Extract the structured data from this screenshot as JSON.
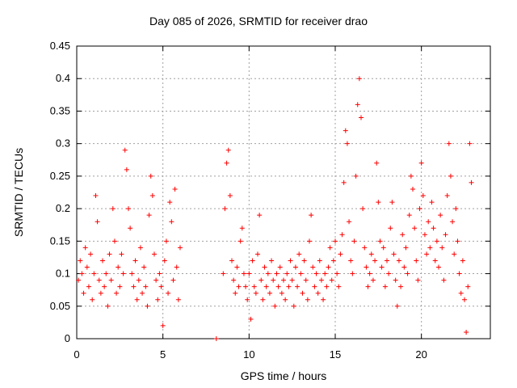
{
  "chart_data": {
    "type": "scatter",
    "title": "Day 085 of 2026, SRMTID for receiver drao",
    "xlabel": "GPS time / hours",
    "ylabel": "SRMTID / TECUs",
    "xlim": [
      0,
      24
    ],
    "ylim": [
      0,
      0.45
    ],
    "xticks": [
      0,
      5,
      10,
      15,
      20
    ],
    "yticks": [
      0,
      0.05,
      0.1,
      0.15,
      0.2,
      0.25,
      0.3,
      0.35,
      0.4,
      0.45
    ],
    "ytick_labels": [
      "0",
      "0.05",
      "0.1",
      "0.15",
      "0.2",
      "0.25",
      "0.3",
      "0.35",
      "0.4",
      "0.45"
    ],
    "grid": true,
    "series": [
      {
        "name": "SRMTID",
        "color": "#ff0000",
        "marker": "plus",
        "points": [
          [
            0.1,
            0.09
          ],
          [
            0.2,
            0.12
          ],
          [
            0.3,
            0.1
          ],
          [
            0.4,
            0.07
          ],
          [
            0.5,
            0.14
          ],
          [
            0.6,
            0.11
          ],
          [
            0.7,
            0.08
          ],
          [
            0.8,
            0.13
          ],
          [
            0.9,
            0.06
          ],
          [
            1.0,
            0.1
          ],
          [
            1.1,
            0.22
          ],
          [
            1.2,
            0.18
          ],
          [
            1.3,
            0.09
          ],
          [
            1.4,
            0.07
          ],
          [
            1.5,
            0.12
          ],
          [
            1.6,
            0.08
          ],
          [
            1.7,
            0.1
          ],
          [
            1.8,
            0.05
          ],
          [
            1.9,
            0.13
          ],
          [
            2.0,
            0.09
          ],
          [
            2.1,
            0.2
          ],
          [
            2.2,
            0.15
          ],
          [
            2.3,
            0.07
          ],
          [
            2.4,
            0.11
          ],
          [
            2.5,
            0.08
          ],
          [
            2.6,
            0.13
          ],
          [
            2.7,
            0.1
          ],
          [
            2.8,
            0.29
          ],
          [
            2.9,
            0.26
          ],
          [
            3.0,
            0.2
          ],
          [
            3.1,
            0.17
          ],
          [
            3.2,
            0.1
          ],
          [
            3.3,
            0.08
          ],
          [
            3.4,
            0.12
          ],
          [
            3.5,
            0.06
          ],
          [
            3.6,
            0.09
          ],
          [
            3.7,
            0.14
          ],
          [
            3.8,
            0.07
          ],
          [
            3.9,
            0.11
          ],
          [
            4.0,
            0.08
          ],
          [
            4.1,
            0.05
          ],
          [
            4.2,
            0.19
          ],
          [
            4.3,
            0.25
          ],
          [
            4.4,
            0.22
          ],
          [
            4.5,
            0.13
          ],
          [
            4.6,
            0.09
          ],
          [
            4.7,
            0.06
          ],
          [
            4.8,
            0.1
          ],
          [
            4.9,
            0.08
          ],
          [
            5.0,
            0.02
          ],
          [
            5.1,
            0.12
          ],
          [
            5.2,
            0.15
          ],
          [
            5.3,
            0.07
          ],
          [
            5.4,
            0.21
          ],
          [
            5.5,
            0.18
          ],
          [
            5.6,
            0.09
          ],
          [
            5.7,
            0.23
          ],
          [
            5.8,
            0.11
          ],
          [
            5.9,
            0.06
          ],
          [
            6.0,
            0.14
          ],
          [
            8.1,
            0.0
          ],
          [
            8.5,
            0.1
          ],
          [
            8.6,
            0.2
          ],
          [
            8.7,
            0.27
          ],
          [
            8.8,
            0.29
          ],
          [
            8.9,
            0.22
          ],
          [
            9.0,
            0.12
          ],
          [
            9.1,
            0.09
          ],
          [
            9.2,
            0.07
          ],
          [
            9.3,
            0.11
          ],
          [
            9.4,
            0.08
          ],
          [
            9.5,
            0.15
          ],
          [
            9.6,
            0.17
          ],
          [
            9.7,
            0.1
          ],
          [
            9.8,
            0.08
          ],
          [
            9.9,
            0.06
          ],
          [
            10.0,
            0.1
          ],
          [
            10.1,
            0.03
          ],
          [
            10.2,
            0.12
          ],
          [
            10.3,
            0.08
          ],
          [
            10.4,
            0.07
          ],
          [
            10.5,
            0.13
          ],
          [
            10.6,
            0.19
          ],
          [
            10.7,
            0.09
          ],
          [
            10.8,
            0.06
          ],
          [
            10.9,
            0.11
          ],
          [
            11.0,
            0.08
          ],
          [
            11.1,
            0.1
          ],
          [
            11.2,
            0.07
          ],
          [
            11.3,
            0.12
          ],
          [
            11.4,
            0.09
          ],
          [
            11.5,
            0.05
          ],
          [
            11.6,
            0.1
          ],
          [
            11.7,
            0.08
          ],
          [
            11.8,
            0.11
          ],
          [
            11.9,
            0.07
          ],
          [
            12.0,
            0.09
          ],
          [
            12.1,
            0.06
          ],
          [
            12.2,
            0.1
          ],
          [
            12.3,
            0.08
          ],
          [
            12.4,
            0.12
          ],
          [
            12.5,
            0.09
          ],
          [
            12.6,
            0.05
          ],
          [
            12.7,
            0.11
          ],
          [
            12.8,
            0.08
          ],
          [
            12.9,
            0.13
          ],
          [
            13.0,
            0.1
          ],
          [
            13.1,
            0.07
          ],
          [
            13.2,
            0.12
          ],
          [
            13.3,
            0.09
          ],
          [
            13.4,
            0.06
          ],
          [
            13.5,
            0.15
          ],
          [
            13.6,
            0.19
          ],
          [
            13.7,
            0.11
          ],
          [
            13.8,
            0.08
          ],
          [
            13.9,
            0.1
          ],
          [
            14.0,
            0.07
          ],
          [
            14.1,
            0.12
          ],
          [
            14.2,
            0.09
          ],
          [
            14.3,
            0.06
          ],
          [
            14.4,
            0.1
          ],
          [
            14.5,
            0.08
          ],
          [
            14.6,
            0.11
          ],
          [
            14.7,
            0.14
          ],
          [
            14.8,
            0.09
          ],
          [
            14.9,
            0.12
          ],
          [
            15.0,
            0.15
          ],
          [
            15.1,
            0.1
          ],
          [
            15.2,
            0.08
          ],
          [
            15.3,
            0.13
          ],
          [
            15.4,
            0.16
          ],
          [
            15.5,
            0.24
          ],
          [
            15.6,
            0.32
          ],
          [
            15.7,
            0.3
          ],
          [
            15.8,
            0.18
          ],
          [
            15.9,
            0.12
          ],
          [
            16.0,
            0.1
          ],
          [
            16.1,
            0.15
          ],
          [
            16.2,
            0.25
          ],
          [
            16.3,
            0.36
          ],
          [
            16.4,
            0.4
          ],
          [
            16.5,
            0.34
          ],
          [
            16.6,
            0.2
          ],
          [
            16.7,
            0.14
          ],
          [
            16.8,
            0.11
          ],
          [
            16.9,
            0.08
          ],
          [
            17.0,
            0.1
          ],
          [
            17.1,
            0.13
          ],
          [
            17.2,
            0.09
          ],
          [
            17.3,
            0.12
          ],
          [
            17.4,
            0.27
          ],
          [
            17.5,
            0.21
          ],
          [
            17.6,
            0.15
          ],
          [
            17.7,
            0.11
          ],
          [
            17.8,
            0.14
          ],
          [
            17.9,
            0.08
          ],
          [
            18.0,
            0.12
          ],
          [
            18.1,
            0.1
          ],
          [
            18.2,
            0.17
          ],
          [
            18.3,
            0.21
          ],
          [
            18.4,
            0.13
          ],
          [
            18.5,
            0.09
          ],
          [
            18.6,
            0.05
          ],
          [
            18.7,
            0.12
          ],
          [
            18.8,
            0.08
          ],
          [
            18.9,
            0.16
          ],
          [
            19.0,
            0.11
          ],
          [
            19.1,
            0.14
          ],
          [
            19.2,
            0.1
          ],
          [
            19.3,
            0.19
          ],
          [
            19.4,
            0.25
          ],
          [
            19.5,
            0.23
          ],
          [
            19.6,
            0.17
          ],
          [
            19.7,
            0.12
          ],
          [
            19.8,
            0.09
          ],
          [
            19.9,
            0.2
          ],
          [
            20.0,
            0.27
          ],
          [
            20.1,
            0.22
          ],
          [
            20.2,
            0.16
          ],
          [
            20.3,
            0.13
          ],
          [
            20.4,
            0.18
          ],
          [
            20.5,
            0.14
          ],
          [
            20.6,
            0.21
          ],
          [
            20.7,
            0.17
          ],
          [
            20.8,
            0.12
          ],
          [
            20.9,
            0.15
          ],
          [
            21.0,
            0.11
          ],
          [
            21.1,
            0.19
          ],
          [
            21.2,
            0.14
          ],
          [
            21.3,
            0.09
          ],
          [
            21.4,
            0.16
          ],
          [
            21.5,
            0.22
          ],
          [
            21.6,
            0.3
          ],
          [
            21.7,
            0.25
          ],
          [
            21.8,
            0.18
          ],
          [
            21.9,
            0.13
          ],
          [
            22.0,
            0.2
          ],
          [
            22.1,
            0.15
          ],
          [
            22.2,
            0.1
          ],
          [
            22.3,
            0.07
          ],
          [
            22.4,
            0.12
          ],
          [
            22.5,
            0.06
          ],
          [
            22.6,
            0.01
          ],
          [
            22.7,
            0.08
          ],
          [
            22.8,
            0.3
          ],
          [
            22.9,
            0.24
          ]
        ]
      }
    ]
  }
}
